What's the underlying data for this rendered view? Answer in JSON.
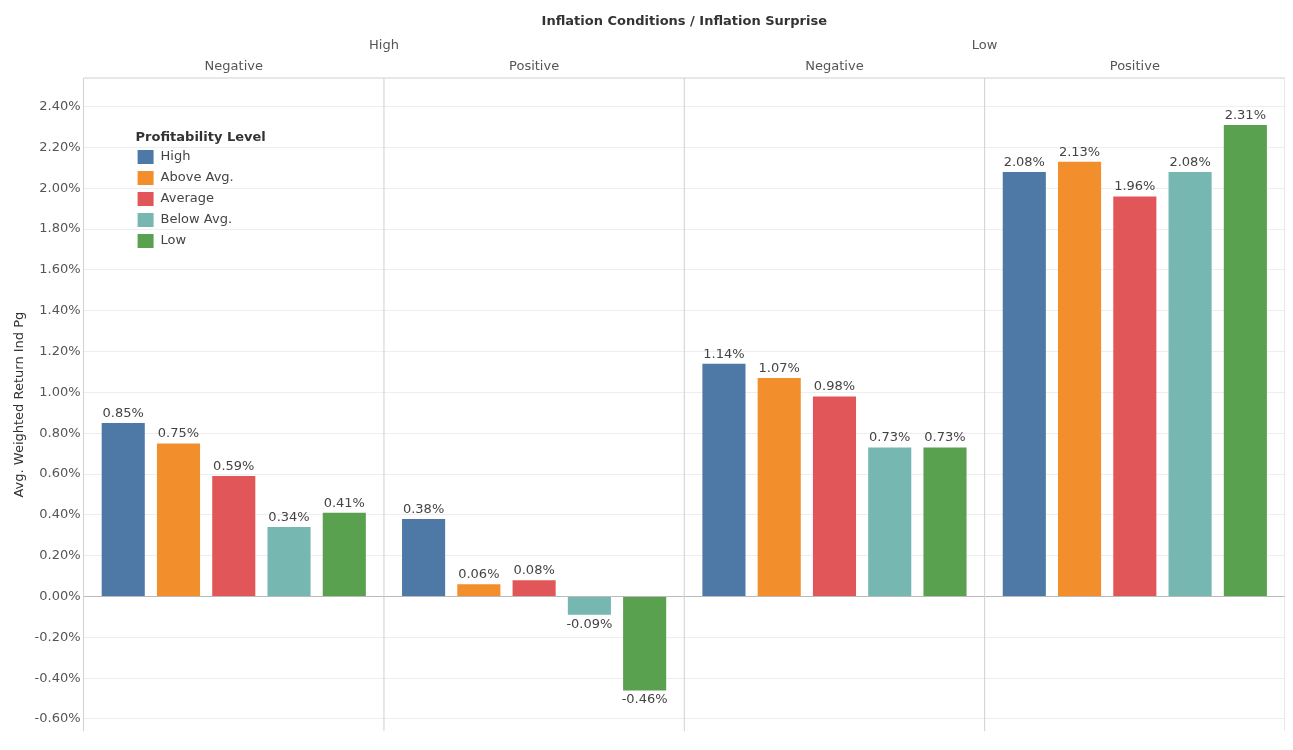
{
  "chart_data": {
    "type": "bar",
    "title": "Inflation Conditions / Inflation Surprise",
    "ylabel": "Avg. Weighted Return Ind Pg",
    "legend_title": "Profitability Level",
    "legend": "top left",
    "grid": "y",
    "annotations": [
      "High",
      "Low"
    ],
    "categories": [
      "Negative",
      "Positive",
      "Negative",
      "Positive"
    ],
    "series": [
      {
        "name": "High",
        "color": "#4e79a7",
        "values": [
          0.85,
          0.38,
          1.14,
          2.08
        ],
        "value_labels": [
          "0.85%",
          "0.38%",
          "1.14%",
          "2.08%"
        ]
      },
      {
        "name": "Above Avg.",
        "color": "#f28e2b",
        "values": [
          0.75,
          0.06,
          1.07,
          2.13
        ],
        "value_labels": [
          "0.75%",
          "0.06%",
          "1.07%",
          "2.13%"
        ]
      },
      {
        "name": "Average",
        "color": "#e15759",
        "values": [
          0.59,
          0.08,
          0.98,
          1.96
        ],
        "value_labels": [
          "0.59%",
          "0.08%",
          "0.98%",
          "1.96%"
        ]
      },
      {
        "name": "Below Avg.",
        "color": "#76b7b2",
        "values": [
          0.34,
          -0.09,
          0.73,
          2.08
        ],
        "value_labels": [
          "0.34%",
          "-0.09%",
          "0.73%",
          "2.08%"
        ]
      },
      {
        "name": "Low",
        "color": "#59a14f",
        "values": [
          0.41,
          -0.46,
          0.73,
          2.31
        ],
        "value_labels": [
          "0.41%",
          "-0.46%",
          "0.73%",
          "2.31%"
        ]
      }
    ],
    "ylim": [
      -0.66,
      2.54
    ],
    "yticks": [
      {
        "value": -0.6,
        "label": "-0.60%"
      },
      {
        "value": -0.4,
        "label": "-0.40%"
      },
      {
        "value": -0.2,
        "label": "-0.20%"
      },
      {
        "value": 0,
        "label": "0.00%"
      },
      {
        "value": 0.2,
        "label": "0.20%"
      },
      {
        "value": 0.4,
        "label": "0.40%"
      },
      {
        "value": 0.6,
        "label": "0.60%"
      },
      {
        "value": 0.8,
        "label": "0.80%"
      },
      {
        "value": 1.0,
        "label": "1.00%"
      },
      {
        "value": 1.2,
        "label": "1.20%"
      },
      {
        "value": 1.4,
        "label": "1.40%"
      },
      {
        "value": 1.6,
        "label": "1.60%"
      },
      {
        "value": 1.8,
        "label": "1.80%"
      },
      {
        "value": 2.0,
        "label": "2.00%"
      },
      {
        "value": 2.2,
        "label": "2.20%"
      },
      {
        "value": 2.4,
        "label": "2.40%"
      }
    ]
  }
}
